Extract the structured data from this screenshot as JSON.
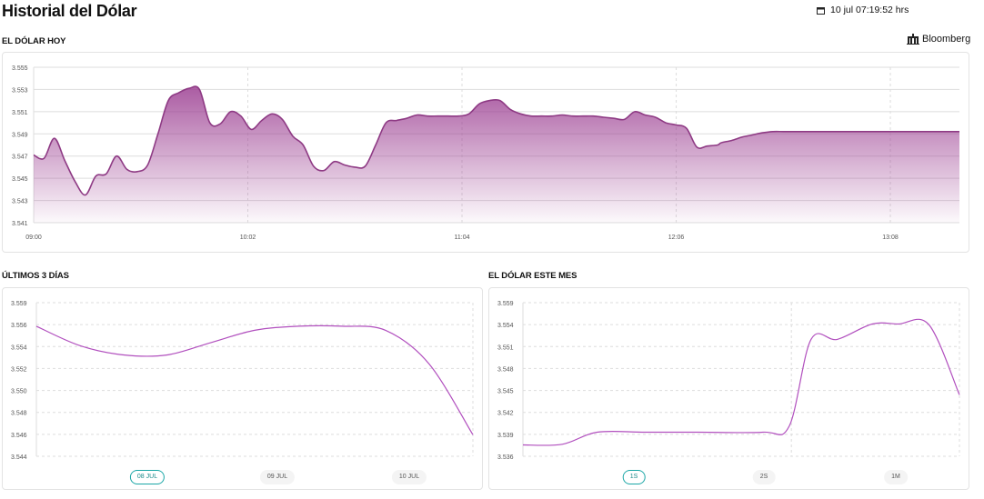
{
  "header": {
    "title": "Historial del Dólar",
    "datetime": "10 jul 07:19:52 hrs"
  },
  "source": {
    "label": "Bloomberg"
  },
  "sections": {
    "today": "EL DÓLAR HOY",
    "three_days": "ÚLTIMOS 3 DÍAS",
    "month": "EL DÓLAR ESTE MES"
  },
  "colors": {
    "today_line": "#8e3a84",
    "small_line": "#b14fbe",
    "active_pill": "#1aa6a6",
    "grid": "#dddddd"
  },
  "chart_data": [
    {
      "id": "today",
      "type": "area",
      "title": "EL DÓLAR HOY",
      "x_ticks": [
        "09:00",
        "10:02",
        "11:04",
        "12:06",
        "13:08"
      ],
      "y_ticks": [
        "3.541",
        "3.543",
        "3.545",
        "3.547",
        "3.549",
        "3.551",
        "3.553",
        "3.555"
      ],
      "ylim": [
        3.541,
        3.555
      ],
      "grid": true,
      "x_minutes": [
        0,
        3,
        6,
        9,
        12,
        15,
        18,
        21,
        24,
        27,
        30,
        33,
        36,
        39,
        42,
        45,
        48,
        51,
        54,
        57,
        60,
        63,
        66,
        69,
        72,
        75,
        78,
        81,
        84,
        87,
        90,
        93,
        96,
        99,
        102,
        105,
        108,
        111,
        114,
        117,
        120,
        123,
        126,
        129,
        132,
        135,
        138,
        141,
        144,
        147,
        150,
        153,
        156,
        159,
        162,
        165,
        168,
        171,
        174,
        177,
        180,
        183,
        186,
        189,
        192,
        195,
        198,
        199,
        202,
        205,
        208,
        211,
        214,
        217,
        220,
        223,
        226,
        229,
        232,
        235,
        238,
        241,
        244,
        247,
        250,
        253,
        256,
        259,
        262,
        265,
        268
      ],
      "values": [
        3.5471,
        3.5468,
        3.5486,
        3.5466,
        3.5447,
        3.5435,
        3.5452,
        3.5454,
        3.547,
        3.5458,
        3.5456,
        3.5462,
        3.549,
        3.552,
        3.5527,
        3.5531,
        3.553,
        3.55,
        3.5499,
        3.551,
        3.5506,
        3.5494,
        3.5502,
        3.5508,
        3.5503,
        3.5488,
        3.548,
        3.5461,
        3.5457,
        3.5465,
        3.5462,
        3.546,
        3.5461,
        3.548,
        3.55,
        3.5502,
        3.5504,
        3.5507,
        3.5506,
        3.5506,
        3.5506,
        3.5506,
        3.5508,
        3.5517,
        3.552,
        3.552,
        3.5512,
        3.5508,
        3.5506,
        3.5506,
        3.5506,
        3.5507,
        3.5506,
        3.5506,
        3.5506,
        3.5505,
        3.5504,
        3.5503,
        3.551,
        3.5507,
        3.5505,
        3.55,
        3.5498,
        3.5495,
        3.5478,
        3.5479,
        3.548,
        3.5482,
        3.5484,
        3.5487,
        3.5489,
        3.5491,
        3.5492,
        3.5492,
        3.5492,
        3.5492,
        3.5492,
        3.5492,
        3.5492,
        3.5492,
        3.5492,
        3.5492,
        3.5492,
        3.5492,
        3.5492,
        3.5492,
        3.5492,
        3.5492,
        3.5492,
        3.5492,
        3.5492
      ]
    },
    {
      "id": "three_days",
      "type": "line",
      "title": "ÚLTIMOS 3 DÍAS",
      "y_ticks": [
        "3.544",
        "3.546",
        "3.548",
        "3.550",
        "3.552",
        "3.554",
        "3.556",
        "3.559"
      ],
      "ylim": [
        3.544,
        3.559
      ],
      "grid": true,
      "x": [
        0,
        0.1,
        0.2,
        0.3,
        0.4,
        0.5,
        0.6,
        0.7,
        0.8,
        0.9,
        1
      ],
      "values": [
        3.5567,
        3.5548,
        3.5539,
        3.5539,
        3.5551,
        3.5563,
        3.5567,
        3.5567,
        3.5563,
        3.553,
        3.5461
      ],
      "tabs": [
        {
          "label": "08 JUL",
          "active": true
        },
        {
          "label": "09 JUL",
          "active": false
        },
        {
          "label": "10 JUL",
          "active": false
        }
      ]
    },
    {
      "id": "month",
      "type": "line",
      "title": "EL DÓLAR ESTE MES",
      "y_ticks": [
        "3.536",
        "3.539",
        "3.542",
        "3.545",
        "3.548",
        "3.551",
        "3.554",
        "3.559"
      ],
      "ylim": [
        3.536,
        3.559
      ],
      "grid": true,
      "x": [
        0,
        0.09,
        0.17,
        0.28,
        0.4,
        0.55,
        0.61,
        0.66,
        0.72,
        0.8,
        0.86,
        0.93,
        1
      ],
      "values": [
        3.5377,
        3.5378,
        3.5396,
        3.5396,
        3.5396,
        3.5396,
        3.5405,
        3.5535,
        3.5535,
        3.5558,
        3.5558,
        3.5557,
        3.5452
      ],
      "tabs": [
        {
          "label": "1S",
          "active": true
        },
        {
          "label": "2S",
          "active": false
        },
        {
          "label": "1M",
          "active": false
        }
      ]
    }
  ]
}
